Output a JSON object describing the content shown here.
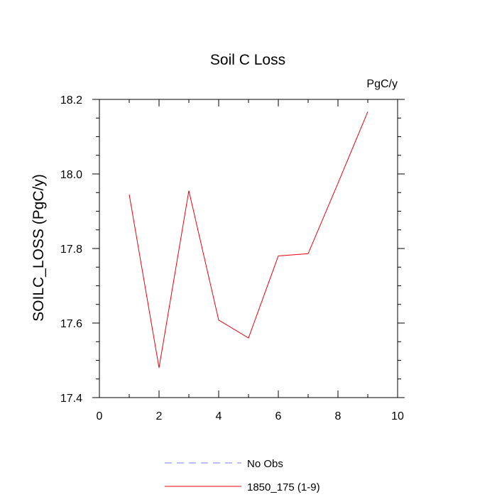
{
  "chart_data": {
    "type": "line",
    "title": "Soil C Loss",
    "units": "PgC/y",
    "xlabel": "",
    "ylabel": "SOILC_LOSS  (PgC/y)",
    "xlim": [
      0,
      10
    ],
    "ylim": [
      17.4,
      18.2
    ],
    "xticks": [
      0,
      2,
      4,
      6,
      8,
      10
    ],
    "xtick_labels": [
      "0",
      "2",
      "4",
      "6",
      "8",
      "10"
    ],
    "yticks": [
      17.4,
      17.6,
      17.8,
      18.0,
      18.2
    ],
    "ytick_labels": [
      "17.4",
      "17.6",
      "17.8",
      "18.0",
      "18.2"
    ],
    "grid": false,
    "legend_position": "bottom",
    "series": [
      {
        "name": "1850_175 (1-9)",
        "color": "#e8000b",
        "style": "solid",
        "x": [
          1,
          2,
          3,
          4,
          5,
          6,
          7,
          8,
          9
        ],
        "y": [
          17.945,
          17.48,
          17.955,
          17.608,
          17.56,
          17.78,
          17.786,
          17.975,
          18.167
        ]
      }
    ],
    "legend": [
      {
        "label": "No Obs",
        "color": "#7a7aff",
        "style": "dashed"
      },
      {
        "label": "1850_175 (1-9)",
        "color": "#e8000b",
        "style": "solid"
      }
    ]
  }
}
